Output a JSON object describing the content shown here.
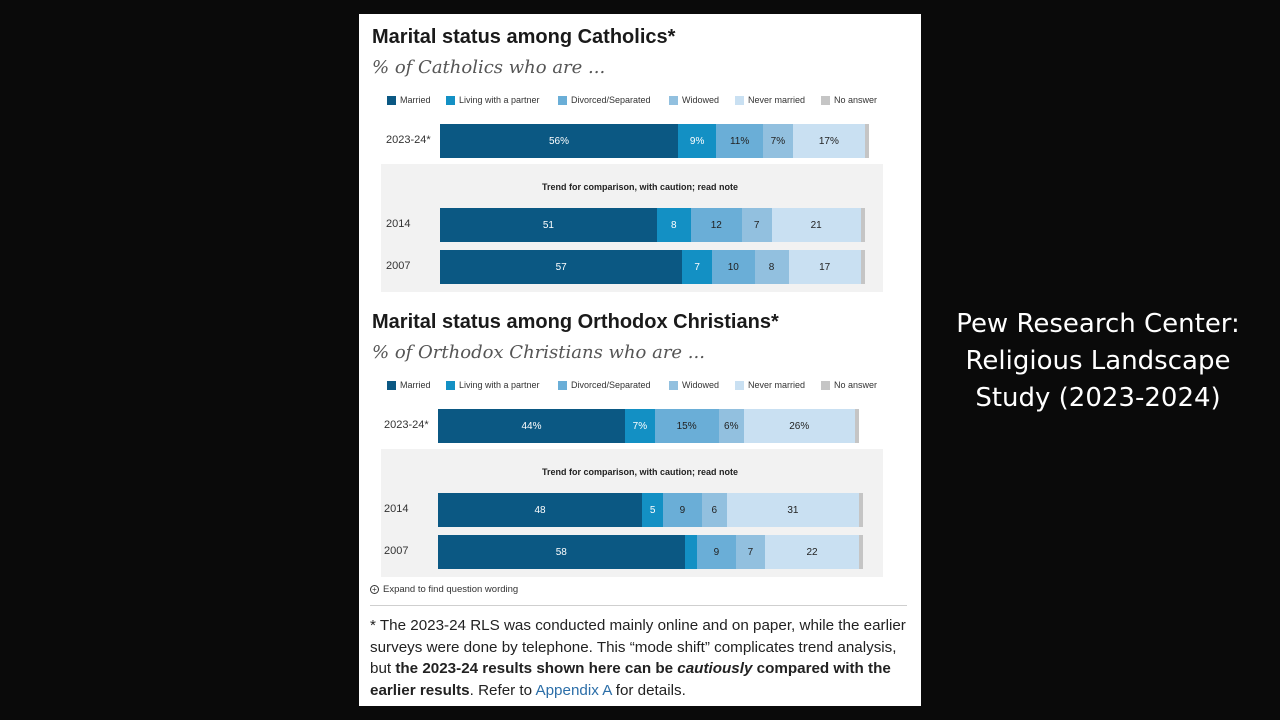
{
  "colors": {
    "married": "#0b5883",
    "living": "#1390c4",
    "divorced": "#6aaed7",
    "widowed": "#92c0df",
    "never": "#c9e0f2",
    "noanswer": "#c5c5c5"
  },
  "legend": [
    {
      "key": "married",
      "label": "Married"
    },
    {
      "key": "living",
      "label": "Living with a partner"
    },
    {
      "key": "divorced",
      "label": "Divorced/Separated"
    },
    {
      "key": "widowed",
      "label": "Widowed"
    },
    {
      "key": "never",
      "label": "Never married"
    },
    {
      "key": "noanswer",
      "label": "No answer"
    }
  ],
  "trend_title": "Trend for comparison, with caution; read note",
  "chart_data": [
    {
      "type": "bar",
      "stacked": true,
      "orientation": "horizontal",
      "title": "Marital status among Catholics*",
      "subtitle": "% of Catholics who are ...",
      "categories": [
        "2023-24*",
        "2014",
        "2007"
      ],
      "series": [
        {
          "name": "Married",
          "values": [
            56,
            51,
            57
          ],
          "labels": [
            "56%",
            "51",
            "57"
          ]
        },
        {
          "name": "Living with a partner",
          "values": [
            9,
            8,
            7
          ],
          "labels": [
            "9%",
            "8",
            "7"
          ]
        },
        {
          "name": "Divorced/Separated",
          "values": [
            11,
            12,
            10
          ],
          "labels": [
            "11%",
            "12",
            "10"
          ]
        },
        {
          "name": "Widowed",
          "values": [
            7,
            7,
            8
          ],
          "labels": [
            "7%",
            "7",
            "8"
          ]
        },
        {
          "name": "Never married",
          "values": [
            17,
            21,
            17
          ],
          "labels": [
            "17%",
            "21",
            "17"
          ]
        },
        {
          "name": "No answer",
          "values": [
            1,
            1,
            1
          ],
          "labels": [
            "",
            "",
            ""
          ]
        }
      ]
    },
    {
      "type": "bar",
      "stacked": true,
      "orientation": "horizontal",
      "title": "Marital status among Orthodox Christians*",
      "subtitle": "% of Orthodox Christians who are ...",
      "categories": [
        "2023-24*",
        "2014",
        "2007"
      ],
      "series": [
        {
          "name": "Married",
          "values": [
            44,
            48,
            58
          ],
          "labels": [
            "44%",
            "48",
            "58"
          ]
        },
        {
          "name": "Living with a partner",
          "values": [
            7,
            5,
            3
          ],
          "labels": [
            "7%",
            "5",
            ""
          ]
        },
        {
          "name": "Divorced/Separated",
          "values": [
            15,
            9,
            9
          ],
          "labels": [
            "15%",
            "9",
            "9"
          ]
        },
        {
          "name": "Widowed",
          "values": [
            6,
            6,
            7
          ],
          "labels": [
            "6%",
            "6",
            "7"
          ]
        },
        {
          "name": "Never married",
          "values": [
            26,
            31,
            22
          ],
          "labels": [
            "26%",
            "31",
            "22"
          ]
        },
        {
          "name": "No answer",
          "values": [
            1,
            1,
            1
          ],
          "labels": [
            "",
            "",
            ""
          ]
        }
      ]
    }
  ],
  "expand_label": "Expand to find question wording",
  "note": {
    "p1": "* The 2023-24 RLS was conducted mainly online and on paper, while the earlier surveys were done by telephone. This “mode shift” complicates trend analysis, but ",
    "b1": "the 2023-24 results shown here can be ",
    "bi": "cautiously",
    "b2": " compared with the earlier results",
    "p2": ". Refer to ",
    "link": "Appendix A",
    "p3": " for details."
  },
  "caption": {
    "line1": "Pew Research Center:",
    "line2": "Religious Landscape",
    "line3": "Study (2023-2024)"
  }
}
